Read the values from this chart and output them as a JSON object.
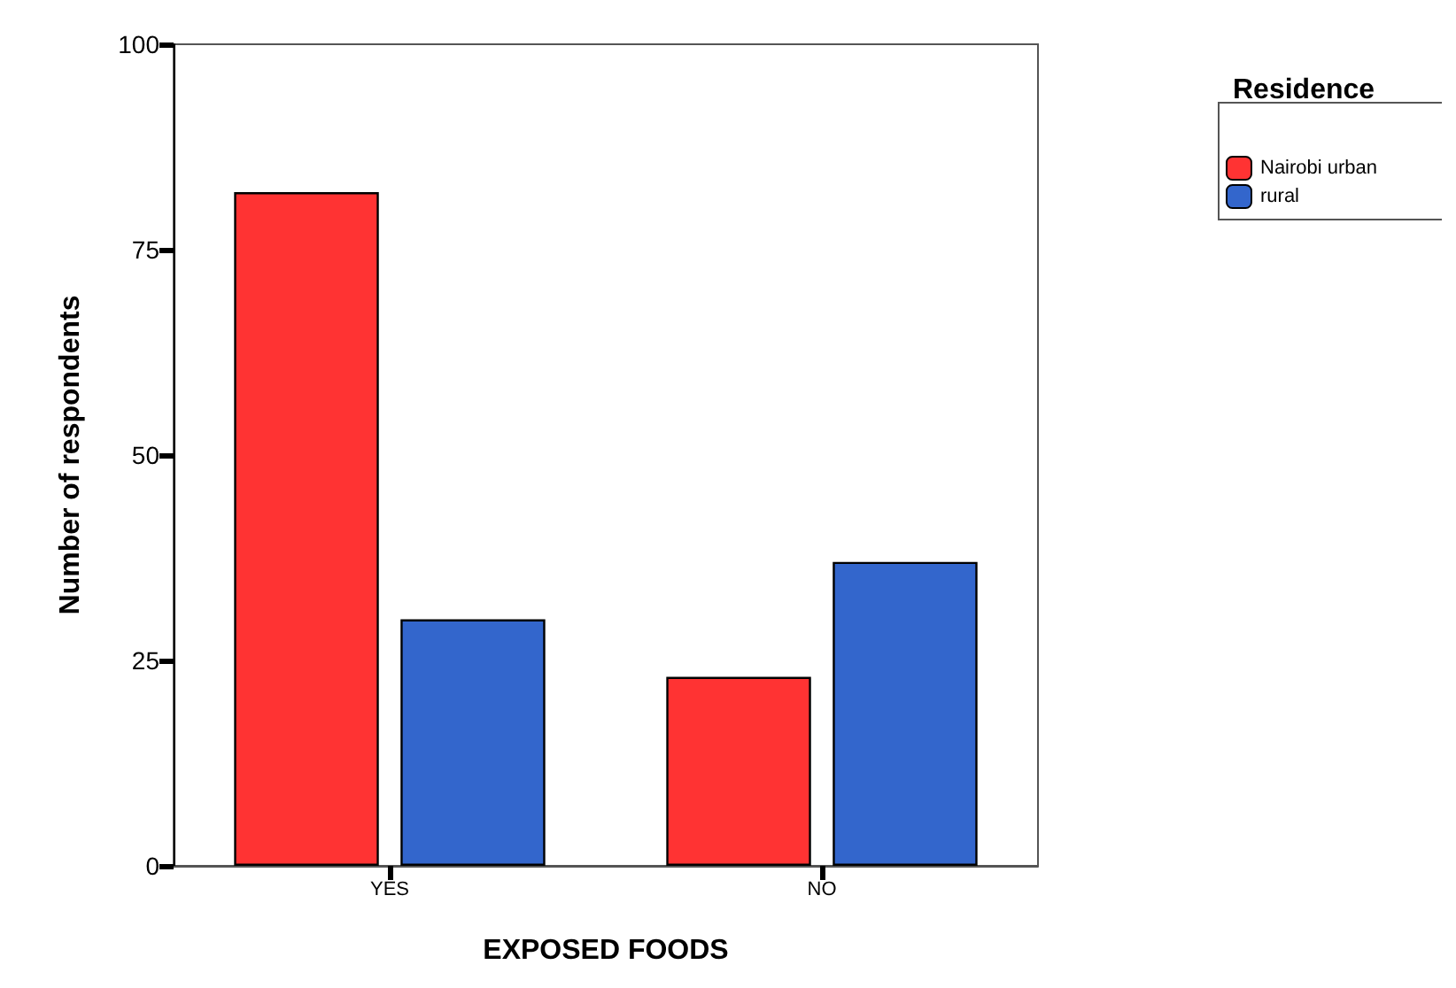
{
  "chart_data": {
    "type": "bar",
    "xlabel": "EXPOSED FOODS",
    "ylabel": "Number of respondents",
    "legend_title": "Residence",
    "categories": [
      "YES",
      "NO"
    ],
    "series": [
      {
        "name": "Nairobi urban",
        "color": "#ff3333",
        "values": [
          82,
          23
        ]
      },
      {
        "name": "rural",
        "color": "#3366cc",
        "values": [
          30,
          37
        ]
      }
    ],
    "ylim": [
      0,
      100
    ],
    "yticks": [
      0,
      25,
      50,
      75,
      100
    ],
    "grid": false,
    "legend": "top right"
  }
}
